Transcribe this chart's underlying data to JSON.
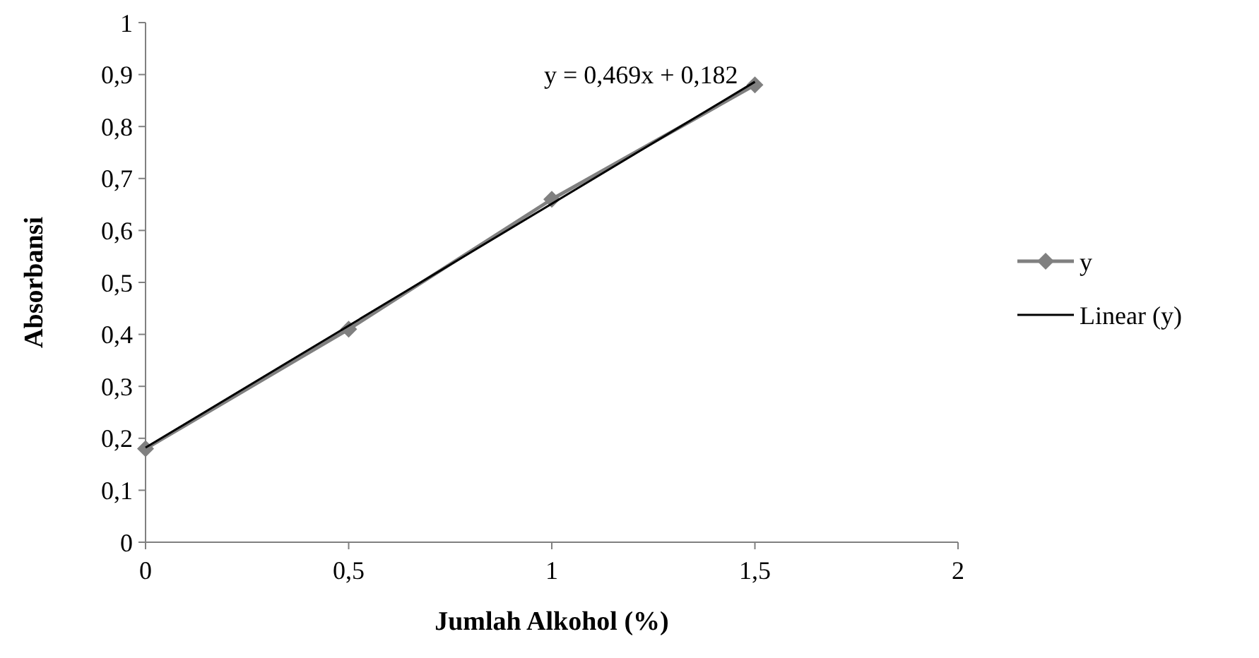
{
  "chart_data": {
    "type": "line",
    "xlabel": "Jumlah Alkohol (%)",
    "ylabel": "Absorbansi",
    "x": [
      0,
      0.5,
      1,
      1.5
    ],
    "series": [
      {
        "name": "y",
        "color": "#808080",
        "values": [
          0.18,
          0.41,
          0.66,
          0.88
        ],
        "marker": "diamond"
      },
      {
        "name": "Linear (y)",
        "color": "#000000",
        "type": "line",
        "x": [
          0,
          1.5
        ],
        "values": [
          0.182,
          0.886
        ],
        "marker": "none"
      }
    ],
    "annotations": [
      "y = 0,469x + 0,182"
    ],
    "xlim": [
      0,
      2
    ],
    "xticks": [
      0,
      {
        "value": 0.5,
        "label": "0,5"
      },
      1,
      {
        "value": 1.5,
        "label": "1,5"
      },
      2
    ],
    "ylim": [
      0,
      1
    ],
    "yticks": [
      0,
      {
        "value": 0.1,
        "label": "0,1"
      },
      {
        "value": 0.2,
        "label": "0,2"
      },
      {
        "value": 0.3,
        "label": "0,3"
      },
      {
        "value": 0.4,
        "label": "0,4"
      },
      {
        "value": 0.5,
        "label": "0,5"
      },
      {
        "value": 0.6,
        "label": "0,6"
      },
      {
        "value": 0.7,
        "label": "0,7"
      },
      {
        "value": 0.8,
        "label": "0,8"
      },
      {
        "value": 0.9,
        "label": "0,9"
      },
      1
    ],
    "grid": false,
    "legend": "right"
  }
}
